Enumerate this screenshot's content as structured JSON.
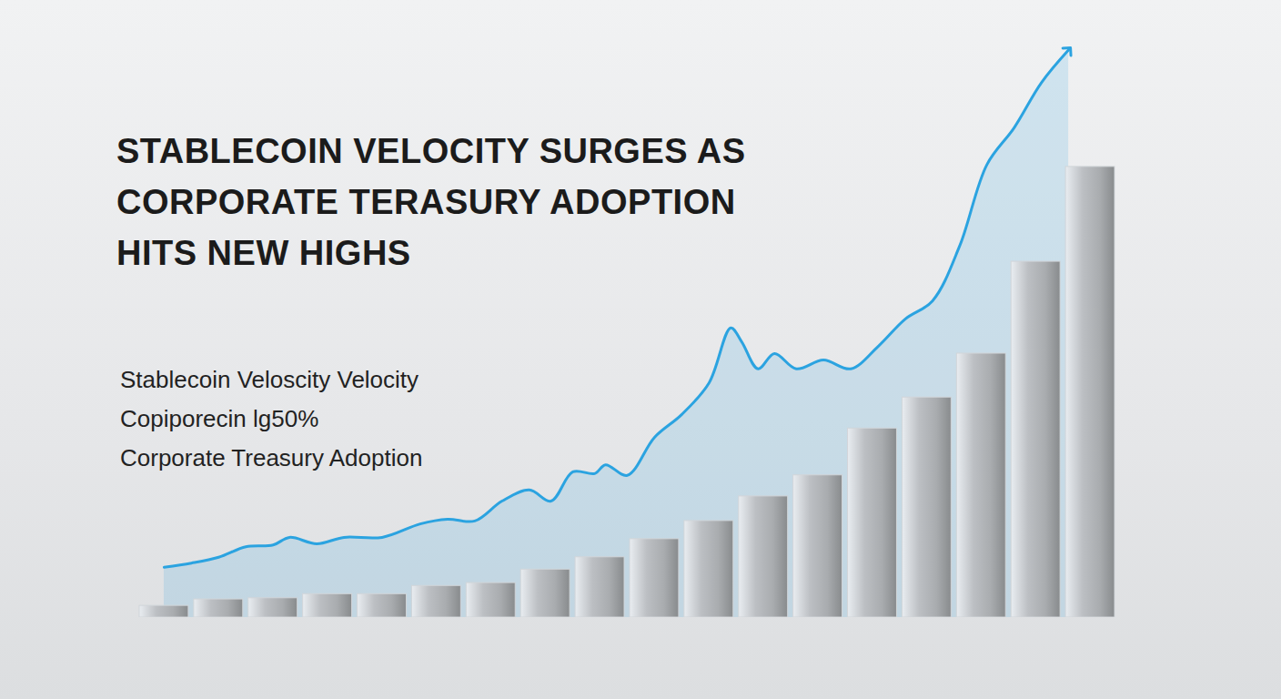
{
  "chart_data": {
    "type": "bar",
    "title": "STABLECOIN VELOCITY SURGES AS CORPORATE TERASURY ADOPTION HITS NEW HIGHS",
    "annotations": [
      "Stablecoin Veloscity Velocity",
      "Copiporecin lg50%",
      "Corporate Treasury Adoption"
    ],
    "categories": [
      null,
      null,
      null,
      null,
      null,
      null,
      null,
      null,
      null,
      null,
      null,
      null,
      null,
      null,
      null,
      null,
      null,
      null
    ],
    "xlim": [
      -0.5,
      17.5
    ],
    "ylim": [
      0,
      100
    ],
    "tick_labels": false,
    "series": [
      {
        "type": "bar",
        "color": "#a9acaf",
        "values": [
          2.0,
          3.1,
          3.3,
          4.0,
          4.0,
          5.4,
          5.9,
          8.2,
          10.3,
          13.4,
          16.5,
          20.7,
          24.3,
          32.3,
          37.6,
          45.1,
          60.8,
          77.0
        ]
      },
      {
        "type": "line",
        "color": "#2ba3e0",
        "marker": "arrow",
        "x": [
          0.0,
          0.5,
          1.0,
          1.5,
          2.0,
          2.3,
          2.8,
          3.3,
          4.0,
          4.7,
          5.2,
          5.7,
          6.2,
          6.7,
          7.1,
          7.5,
          7.9,
          8.1,
          8.5,
          9.0,
          9.5,
          10.0,
          10.4,
          10.6,
          10.9,
          11.2,
          11.6,
          12.1,
          12.6,
          13.1,
          13.6,
          14.1,
          14.6,
          15.1,
          15.6,
          16.1,
          16.6
        ],
        "values": [
          8.6,
          9.3,
          10.3,
          12.1,
          12.4,
          13.7,
          12.6,
          13.7,
          13.7,
          16.0,
          16.8,
          16.5,
          19.9,
          21.8,
          19.9,
          24.9,
          24.6,
          26.1,
          24.3,
          30.8,
          34.7,
          40.1,
          49.5,
          47.1,
          42.5,
          45.1,
          42.5,
          44.0,
          42.5,
          46.3,
          51.0,
          54.1,
          63.5,
          77.4,
          83.7,
          91.4,
          97.0
        ]
      }
    ]
  }
}
